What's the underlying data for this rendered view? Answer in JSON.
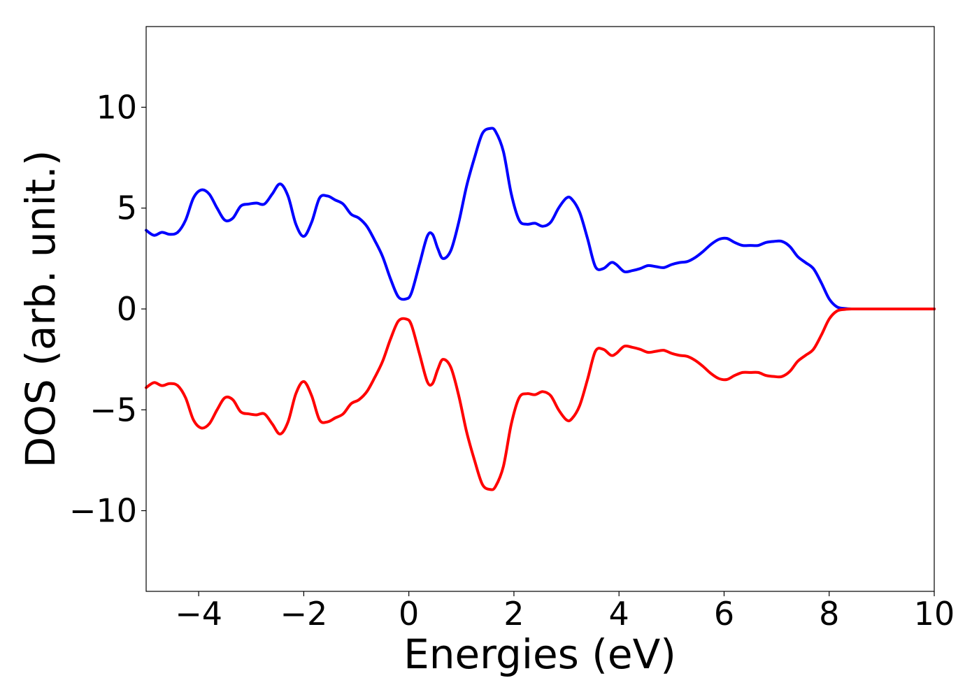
{
  "chart_data": {
    "type": "line",
    "title": "",
    "xlabel": "Energies (eV)",
    "ylabel": "DOS (arb. unit.)",
    "xlim": [
      -5,
      10
    ],
    "ylim": [
      -14,
      14
    ],
    "xticks": [
      -4,
      -2,
      0,
      2,
      4,
      6,
      8,
      10
    ],
    "yticks": [
      -10,
      -5,
      0,
      5,
      10
    ],
    "xtick_labels": [
      "−4",
      "−2",
      "0",
      "2",
      "4",
      "6",
      "8",
      "10"
    ],
    "ytick_labels": [
      "−10",
      "−5",
      "0",
      "5",
      "10"
    ],
    "grid": false,
    "legend": "none",
    "x": [
      -5.0,
      -4.85,
      -4.7,
      -4.55,
      -4.4,
      -4.25,
      -4.1,
      -3.95,
      -3.8,
      -3.65,
      -3.5,
      -3.35,
      -3.2,
      -3.05,
      -2.9,
      -2.75,
      -2.6,
      -2.45,
      -2.3,
      -2.15,
      -2.0,
      -1.85,
      -1.7,
      -1.55,
      -1.4,
      -1.25,
      -1.1,
      -0.95,
      -0.8,
      -0.65,
      -0.5,
      -0.35,
      -0.2,
      -0.05,
      0.05,
      0.2,
      0.35,
      0.45,
      0.55,
      0.65,
      0.8,
      0.95,
      1.1,
      1.25,
      1.4,
      1.55,
      1.65,
      1.8,
      1.95,
      2.1,
      2.25,
      2.4,
      2.55,
      2.7,
      2.85,
      3.0,
      3.1,
      3.25,
      3.4,
      3.55,
      3.7,
      3.85,
      3.95,
      4.1,
      4.25,
      4.4,
      4.55,
      4.7,
      4.85,
      5.0,
      5.15,
      5.3,
      5.45,
      5.6,
      5.75,
      5.9,
      6.05,
      6.2,
      6.35,
      6.5,
      6.65,
      6.8,
      6.95,
      7.1,
      7.25,
      7.4,
      7.55,
      7.7,
      7.85,
      8.0,
      8.15,
      8.3,
      8.45,
      8.6,
      9.0,
      9.5,
      10.0
    ],
    "series": [
      {
        "color": "#0000ff",
        "values": [
          3.9,
          3.65,
          3.8,
          3.7,
          3.8,
          4.4,
          5.5,
          5.9,
          5.7,
          5.0,
          4.4,
          4.5,
          5.1,
          5.2,
          5.25,
          5.2,
          5.7,
          6.2,
          5.6,
          4.2,
          3.6,
          4.3,
          5.5,
          5.6,
          5.4,
          5.2,
          4.7,
          4.5,
          4.1,
          3.4,
          2.6,
          1.5,
          0.6,
          0.5,
          0.8,
          2.2,
          3.6,
          3.7,
          3.0,
          2.5,
          2.9,
          4.3,
          6.1,
          7.5,
          8.7,
          8.95,
          8.8,
          7.8,
          5.7,
          4.4,
          4.2,
          4.25,
          4.1,
          4.3,
          5.0,
          5.5,
          5.45,
          4.8,
          3.5,
          2.1,
          2.0,
          2.3,
          2.2,
          1.85,
          1.9,
          2.0,
          2.15,
          2.1,
          2.05,
          2.2,
          2.3,
          2.35,
          2.55,
          2.85,
          3.2,
          3.45,
          3.5,
          3.3,
          3.15,
          3.15,
          3.15,
          3.3,
          3.35,
          3.35,
          3.1,
          2.6,
          2.3,
          2.0,
          1.3,
          0.5,
          0.1,
          0.02,
          0.0,
          0.0,
          0.0,
          0.0,
          0.0
        ]
      },
      {
        "color": "#ff0000",
        "values": [
          -3.9,
          -3.65,
          -3.8,
          -3.7,
          -3.8,
          -4.4,
          -5.5,
          -5.9,
          -5.7,
          -5.0,
          -4.4,
          -4.5,
          -5.1,
          -5.2,
          -5.25,
          -5.2,
          -5.7,
          -6.2,
          -5.6,
          -4.2,
          -3.6,
          -4.3,
          -5.5,
          -5.6,
          -5.4,
          -5.2,
          -4.7,
          -4.5,
          -4.1,
          -3.4,
          -2.6,
          -1.5,
          -0.6,
          -0.5,
          -0.8,
          -2.2,
          -3.6,
          -3.7,
          -3.0,
          -2.5,
          -2.9,
          -4.3,
          -6.1,
          -7.5,
          -8.7,
          -8.95,
          -8.8,
          -7.8,
          -5.7,
          -4.4,
          -4.2,
          -4.25,
          -4.1,
          -4.3,
          -5.0,
          -5.5,
          -5.45,
          -4.8,
          -3.5,
          -2.1,
          -2.0,
          -2.3,
          -2.2,
          -1.85,
          -1.9,
          -2.0,
          -2.15,
          -2.1,
          -2.05,
          -2.2,
          -2.3,
          -2.35,
          -2.55,
          -2.85,
          -3.2,
          -3.45,
          -3.5,
          -3.3,
          -3.15,
          -3.15,
          -3.15,
          -3.3,
          -3.35,
          -3.35,
          -3.1,
          -2.6,
          -2.3,
          -2.0,
          -1.3,
          -0.5,
          -0.1,
          -0.02,
          0.0,
          0.0,
          0.0,
          0.0,
          0.0
        ]
      }
    ]
  }
}
